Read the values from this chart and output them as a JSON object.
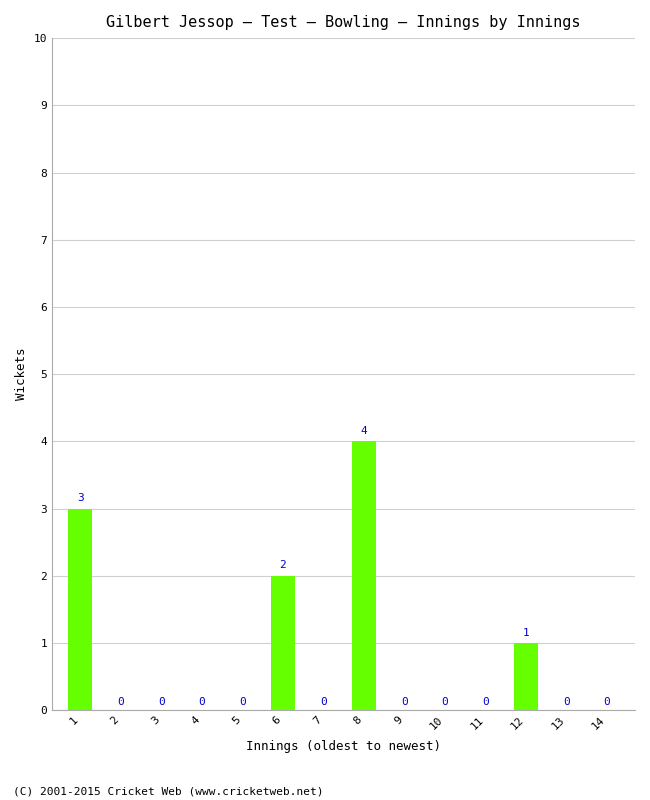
{
  "title": "Gilbert Jessop – Test – Bowling – Innings by Innings",
  "xlabel": "Innings (oldest to newest)",
  "ylabel": "Wickets",
  "bar_color": "#66ff00",
  "label_color": "#0000cc",
  "innings": [
    1,
    2,
    3,
    4,
    5,
    6,
    7,
    8,
    9,
    10,
    11,
    12,
    13,
    14
  ],
  "wickets": [
    3,
    0,
    0,
    0,
    0,
    2,
    0,
    4,
    0,
    0,
    0,
    1,
    0,
    0
  ],
  "ylim": [
    0,
    10
  ],
  "yticks": [
    0,
    1,
    2,
    3,
    4,
    5,
    6,
    7,
    8,
    9,
    10
  ],
  "footer": "(C) 2001-2015 Cricket Web (www.cricketweb.net)",
  "title_fontsize": 11,
  "axis_label_fontsize": 9,
  "tick_fontsize": 8,
  "annotation_fontsize": 8,
  "footer_fontsize": 8
}
